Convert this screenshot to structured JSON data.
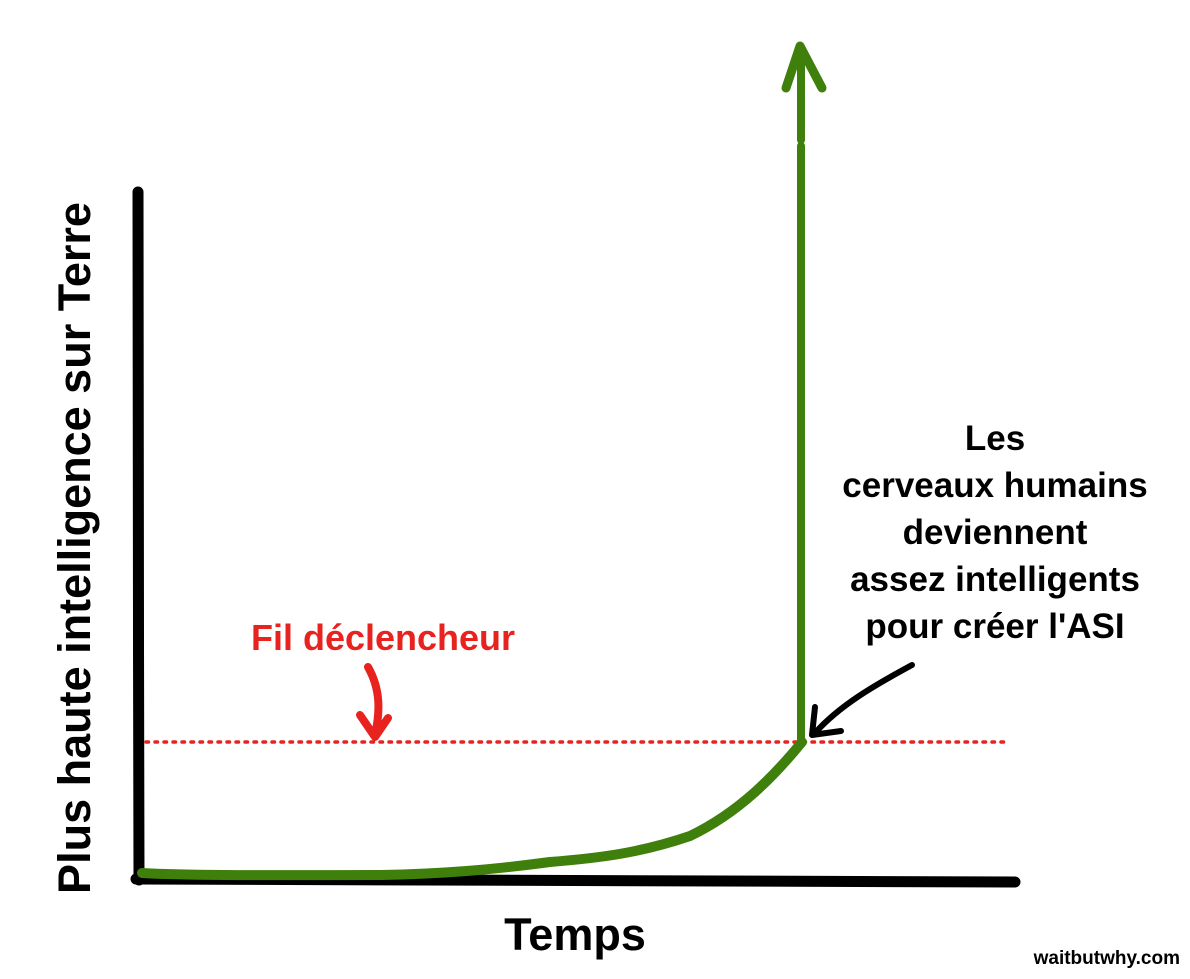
{
  "y_axis_label": "Plus haute intelligence sur Terre",
  "x_axis_label": "Temps",
  "tripwire_label": "Fil déclencheur",
  "annotation_lines": [
    "Les",
    "cerveaux humains",
    "deviennent",
    "assez intelligents",
    "pour créer l'ASI"
  ],
  "credit": "waitbutwhy.com",
  "colors": {
    "axis": "#000000",
    "curve": "#3f7f0b",
    "tripwire": "#e8231f",
    "text": "#000000"
  }
}
